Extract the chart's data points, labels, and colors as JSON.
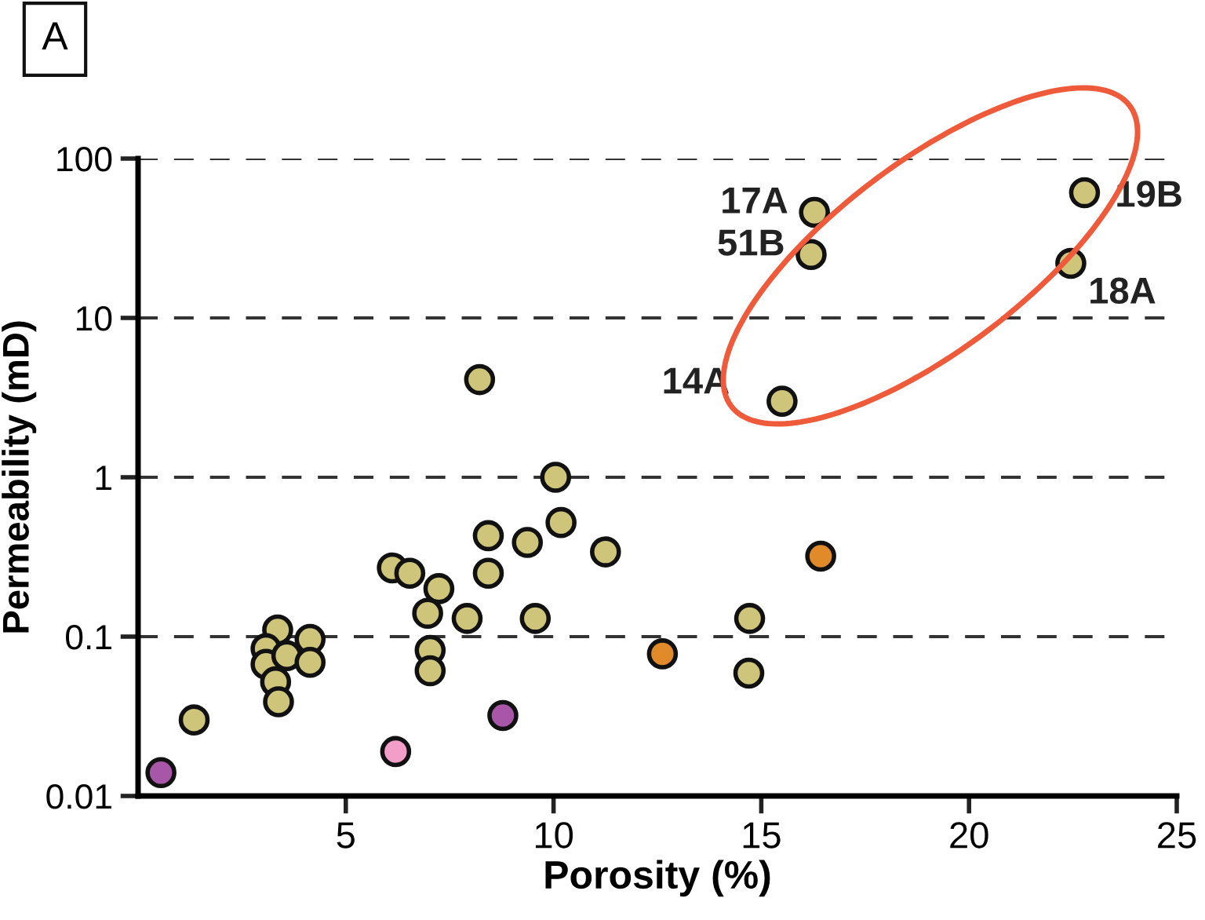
{
  "chart_data": {
    "type": "scatter",
    "xlabel": "Porosity (%)",
    "ylabel": "Permeability (mD)",
    "xlim": [
      0,
      25
    ],
    "xticks": [
      5,
      10,
      15,
      20,
      25
    ],
    "ylim": [
      0.01,
      100
    ],
    "log": "y",
    "yticks": [
      0.01,
      0.1,
      1,
      10,
      100
    ],
    "grid": "y",
    "line_style": "dashed",
    "marker": "circle",
    "series": [
      {
        "color": "#cfc57a",
        "x": [
          1.35,
          3.36,
          3.08,
          3.08,
          3.58,
          4.14,
          4.14,
          3.31,
          3.38,
          6.12,
          6.54,
          7.24,
          6.97,
          7.03,
          7.03,
          7.92,
          8.43,
          8.43,
          9.37,
          10.05,
          10.18,
          9.56,
          11.25,
          14.72,
          14.7,
          8.22,
          15.5,
          16.28,
          16.2,
          22.78,
          22.45
        ],
        "values": [
          0.03,
          0.11,
          0.084,
          0.067,
          0.076,
          0.096,
          0.069,
          0.052,
          0.039,
          0.27,
          0.25,
          0.2,
          0.14,
          0.082,
          0.061,
          0.13,
          0.43,
          0.25,
          0.39,
          1.0,
          0.52,
          0.13,
          0.34,
          0.13,
          0.059,
          4.1,
          3.0,
          46,
          25,
          61,
          22
        ]
      },
      {
        "color": "#a857a8",
        "x": [
          0.55,
          8.78
        ],
        "values": [
          0.014,
          0.032
        ]
      },
      {
        "color": "#f29ec8",
        "x": [
          6.2
        ],
        "values": [
          0.019
        ]
      },
      {
        "color": "#e08a2a",
        "x": [
          16.43,
          12.62
        ],
        "values": [
          0.32,
          0.078
        ]
      }
    ],
    "annotations": [
      "A",
      {
        "text": "17A",
        "x": 16.28,
        "y": 46
      },
      {
        "text": "51B",
        "x": 16.2,
        "y": 25
      },
      {
        "text": "14A",
        "x": 15.5,
        "y": 3.0
      },
      {
        "text": "19B",
        "x": 22.78,
        "y": 61
      },
      {
        "text": "18A",
        "x": 22.45,
        "y": 22
      }
    ]
  }
}
